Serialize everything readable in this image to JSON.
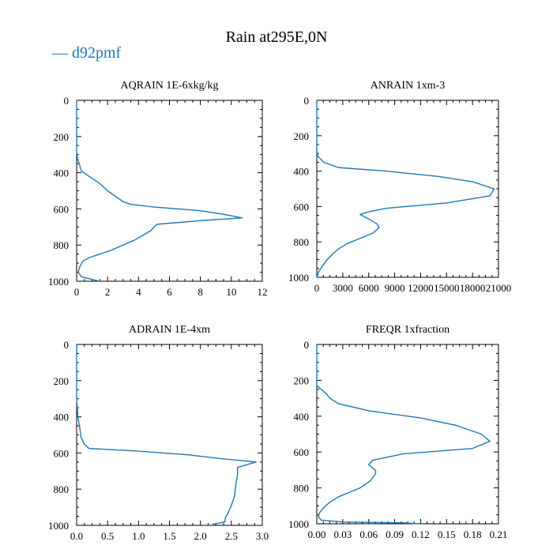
{
  "title": "Rain at295E,0N",
  "legend": {
    "label": "d92pmf",
    "marker": "—",
    "color": "#1f77b4"
  },
  "chart_data": [
    {
      "type": "line",
      "title": "AQRAIN  1E-6xkg/kg",
      "xlim": [
        0,
        12
      ],
      "ylim": [
        1000,
        0
      ],
      "xticks": [
        0,
        2,
        4,
        6,
        8,
        10,
        12
      ],
      "xtick_labels": [
        "0",
        "2",
        "4",
        "6",
        "8",
        "10",
        "12"
      ],
      "yticks": [
        0,
        200,
        400,
        600,
        800,
        1000
      ],
      "ytick_labels": [
        "0",
        "200",
        "400",
        "600",
        "800",
        "1000"
      ],
      "series": [
        {
          "name": "d92pmf",
          "color": "#1f77b4",
          "points": [
            [
              0,
              0
            ],
            [
              0,
              100
            ],
            [
              0,
              200
            ],
            [
              0,
              280
            ],
            [
              0.05,
              320
            ],
            [
              0.2,
              360
            ],
            [
              0.3,
              390
            ],
            [
              0.8,
              420
            ],
            [
              1.5,
              460
            ],
            [
              2.0,
              500
            ],
            [
              2.5,
              530
            ],
            [
              3.0,
              560
            ],
            [
              3.5,
              575
            ],
            [
              5.0,
              590
            ],
            [
              8.0,
              610
            ],
            [
              9.5,
              630
            ],
            [
              10.7,
              650
            ],
            [
              8.0,
              665
            ],
            [
              5.2,
              685
            ],
            [
              5.0,
              700
            ],
            [
              4.8,
              720
            ],
            [
              4.4,
              740
            ],
            [
              3.8,
              770
            ],
            [
              3.0,
              800
            ],
            [
              2.2,
              830
            ],
            [
              1.5,
              850
            ],
            [
              0.8,
              870
            ],
            [
              0.4,
              890
            ],
            [
              0.2,
              920
            ],
            [
              0.1,
              950
            ],
            [
              0.3,
              975
            ],
            [
              1.0,
              990
            ],
            [
              1.5,
              1000
            ]
          ]
        }
      ]
    },
    {
      "type": "line",
      "title": "ANRAIN  1xm-3",
      "xlim": [
        0,
        21000
      ],
      "ylim": [
        1000,
        0
      ],
      "xticks": [
        0,
        3000,
        6000,
        9000,
        12000,
        15000,
        18000,
        21000
      ],
      "xtick_labels": [
        "0",
        "3000",
        "6000",
        "9000",
        "12000",
        "15000",
        "18000",
        "21000"
      ],
      "yticks": [
        0,
        200,
        400,
        600,
        800,
        1000
      ],
      "ytick_labels": [
        "0",
        "200",
        "400",
        "600",
        "800",
        "1000"
      ],
      "series": [
        {
          "name": "d92pmf",
          "color": "#1f77b4",
          "points": [
            [
              0,
              0
            ],
            [
              0,
              100
            ],
            [
              0,
              200
            ],
            [
              0,
              300
            ],
            [
              200,
              320
            ],
            [
              800,
              350
            ],
            [
              2500,
              380
            ],
            [
              8000,
              400
            ],
            [
              14000,
              430
            ],
            [
              18000,
              460
            ],
            [
              20500,
              500
            ],
            [
              20000,
              540
            ],
            [
              15000,
              580
            ],
            [
              8000,
              610
            ],
            [
              6000,
              630
            ],
            [
              5000,
              645
            ],
            [
              6000,
              670
            ],
            [
              7000,
              700
            ],
            [
              7200,
              720
            ],
            [
              6500,
              750
            ],
            [
              5000,
              780
            ],
            [
              3500,
              810
            ],
            [
              2500,
              840
            ],
            [
              1800,
              870
            ],
            [
              1200,
              900
            ],
            [
              600,
              940
            ],
            [
              200,
              970
            ],
            [
              0,
              1000
            ]
          ]
        }
      ]
    },
    {
      "type": "line",
      "title": "ADRAIN  1E-4xm",
      "xlim": [
        0,
        3.0
      ],
      "ylim": [
        1000,
        0
      ],
      "xticks": [
        0,
        0.5,
        1.0,
        1.5,
        2.0,
        2.5,
        3.0
      ],
      "xtick_labels": [
        "0.0",
        "0.5",
        "1.0",
        "1.5",
        "2.0",
        "2.5",
        "3.0"
      ],
      "yticks": [
        0,
        200,
        400,
        600,
        800,
        1000
      ],
      "ytick_labels": [
        "0",
        "200",
        "400",
        "600",
        "800",
        "1000"
      ],
      "series": [
        {
          "name": "d92pmf",
          "color": "#1f77b4",
          "points": [
            [
              0,
              0
            ],
            [
              0,
              100
            ],
            [
              0,
              200
            ],
            [
              0,
              300
            ],
            [
              0.02,
              400
            ],
            [
              0.05,
              460
            ],
            [
              0.07,
              510
            ],
            [
              0.12,
              550
            ],
            [
              0.2,
              575
            ],
            [
              1.0,
              590
            ],
            [
              1.8,
              610
            ],
            [
              2.3,
              630
            ],
            [
              2.9,
              650
            ],
            [
              2.6,
              680
            ],
            [
              2.6,
              720
            ],
            [
              2.57,
              780
            ],
            [
              2.55,
              840
            ],
            [
              2.5,
              890
            ],
            [
              2.45,
              930
            ],
            [
              2.4,
              960
            ],
            [
              2.4,
              980
            ],
            [
              2.2,
              995
            ],
            [
              2.2,
              1000
            ]
          ]
        }
      ]
    },
    {
      "type": "line",
      "title": "FREQR  1xfraction",
      "xlim": [
        0,
        0.21
      ],
      "ylim": [
        1000,
        0
      ],
      "xticks": [
        0,
        0.03,
        0.06,
        0.09,
        0.12,
        0.15,
        0.18,
        0.21
      ],
      "xtick_labels": [
        "0.00",
        "0.03",
        "0.06",
        "0.09",
        "0.12",
        "0.15",
        "0.18",
        "0.21"
      ],
      "yticks": [
        0,
        200,
        400,
        600,
        800,
        1000
      ],
      "ytick_labels": [
        "0",
        "200",
        "400",
        "600",
        "800",
        "1000"
      ],
      "series": [
        {
          "name": "d92pmf",
          "color": "#1f77b4",
          "points": [
            [
              0,
              0
            ],
            [
              0,
              100
            ],
            [
              0,
              200
            ],
            [
              0,
              230
            ],
            [
              0.005,
              250
            ],
            [
              0.012,
              280
            ],
            [
              0.015,
              300
            ],
            [
              0.025,
              330
            ],
            [
              0.06,
              370
            ],
            [
              0.12,
              410
            ],
            [
              0.16,
              450
            ],
            [
              0.19,
              500
            ],
            [
              0.2,
              540
            ],
            [
              0.18,
              580
            ],
            [
              0.1,
              610
            ],
            [
              0.065,
              645
            ],
            [
              0.06,
              670
            ],
            [
              0.065,
              690
            ],
            [
              0.068,
              705
            ],
            [
              0.068,
              720
            ],
            [
              0.062,
              760
            ],
            [
              0.05,
              800
            ],
            [
              0.04,
              820
            ],
            [
              0.025,
              850
            ],
            [
              0.015,
              880
            ],
            [
              0.008,
              910
            ],
            [
              0.003,
              940
            ],
            [
              0.002,
              960
            ],
            [
              0.005,
              980
            ],
            [
              0.03,
              990
            ],
            [
              0.1,
              995
            ],
            [
              0.12,
              1000
            ]
          ]
        }
      ]
    }
  ]
}
